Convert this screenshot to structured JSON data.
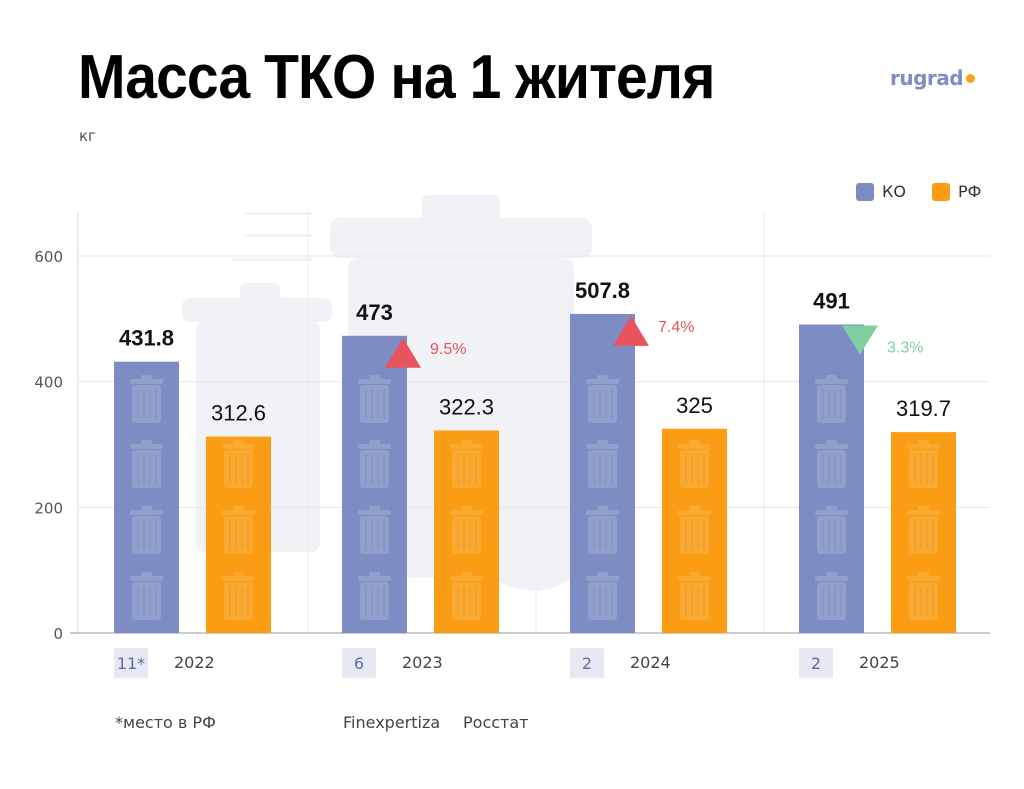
{
  "header": {
    "title": "Масса ТКО на 1 жителя",
    "unit": "кг",
    "brand": "rugrad"
  },
  "legend": [
    {
      "label": "КО",
      "color": "#7d8dc4"
    },
    {
      "label": "РФ",
      "color": "#fb9d14"
    }
  ],
  "ranks": [
    "11*",
    "6",
    "2",
    "2"
  ],
  "footnote": "*место в РФ",
  "sources": [
    "Finexpertiza",
    "Росстат"
  ],
  "changes": [
    null,
    {
      "text": "9.5%",
      "direction": "up",
      "color": "#e8535e"
    },
    {
      "text": "7.4%",
      "direction": "up",
      "color": "#e8535e"
    },
    {
      "text": "3.3%",
      "direction": "down",
      "color": "#7fcf9f"
    }
  ],
  "chart_data": {
    "type": "bar",
    "categories": [
      "2022",
      "2023",
      "2024",
      "2025"
    ],
    "series": [
      {
        "name": "КО",
        "values": [
          431.8,
          473,
          507.8,
          491
        ],
        "labels": [
          "431.8",
          "473",
          "507.8",
          "491"
        ],
        "color": "#7d8dc4"
      },
      {
        "name": "РФ",
        "values": [
          312.6,
          322.3,
          325,
          319.7
        ],
        "labels": [
          "312.6",
          "322.3",
          "325",
          "319.7"
        ],
        "color": "#fb9d14"
      }
    ],
    "yticks": [
      0,
      200,
      400,
      600
    ],
    "ylim": [
      0,
      600
    ],
    "grid": true,
    "legend_position": "top-right"
  }
}
